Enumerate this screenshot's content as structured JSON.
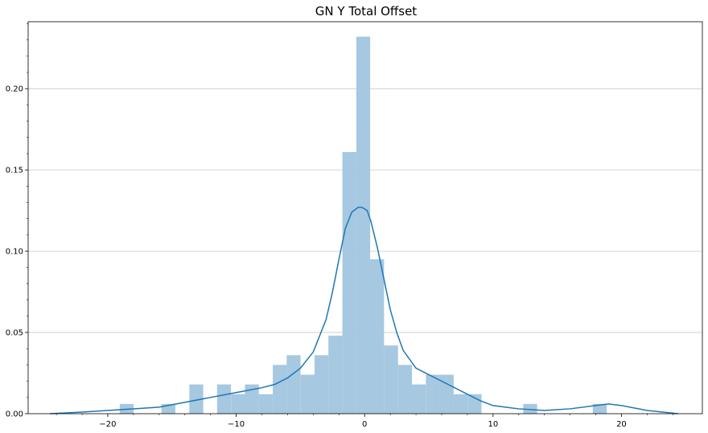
{
  "chart_data": {
    "type": "bar",
    "title": "GN Y Total Offset",
    "xlabel": "",
    "ylabel": "",
    "xlim": [
      -26.2,
      26.3
    ],
    "ylim": [
      0,
      0.2412
    ],
    "grid": "horizontal",
    "xticks": [
      {
        "value": -20,
        "label": "−20"
      },
      {
        "value": -10,
        "label": "−10"
      },
      {
        "value": 0,
        "label": "0"
      },
      {
        "value": 10,
        "label": "10"
      },
      {
        "value": 20,
        "label": "20"
      }
    ],
    "yticks": [
      {
        "value": 0.0,
        "label": "0.00"
      },
      {
        "value": 0.05,
        "label": "0.05"
      },
      {
        "value": 0.1,
        "label": "0.10"
      },
      {
        "value": 0.15,
        "label": "0.15"
      },
      {
        "value": 0.2,
        "label": "0.20"
      }
    ],
    "histogram": {
      "bin_width": 1.083,
      "bins": [
        {
          "start": -19.07,
          "value": 0.006
        },
        {
          "start": -15.82,
          "value": 0.006
        },
        {
          "start": -13.65,
          "value": 0.018
        },
        {
          "start": -11.49,
          "value": 0.018
        },
        {
          "start": -10.4,
          "value": 0.012
        },
        {
          "start": -9.32,
          "value": 0.018
        },
        {
          "start": -8.24,
          "value": 0.012
        },
        {
          "start": -7.15,
          "value": 0.03
        },
        {
          "start": -6.07,
          "value": 0.036
        },
        {
          "start": -4.98,
          "value": 0.024
        },
        {
          "start": -3.9,
          "value": 0.036
        },
        {
          "start": -2.82,
          "value": 0.048
        },
        {
          "start": -1.73,
          "value": 0.161
        },
        {
          "start": -0.65,
          "value": 0.232
        },
        {
          "start": 0.43,
          "value": 0.095
        },
        {
          "start": 1.52,
          "value": 0.042
        },
        {
          "start": 2.6,
          "value": 0.03
        },
        {
          "start": 3.68,
          "value": 0.018
        },
        {
          "start": 4.77,
          "value": 0.024
        },
        {
          "start": 5.85,
          "value": 0.024
        },
        {
          "start": 6.93,
          "value": 0.012
        },
        {
          "start": 8.02,
          "value": 0.012
        },
        {
          "start": 12.35,
          "value": 0.006
        },
        {
          "start": 17.77,
          "value": 0.006
        }
      ]
    },
    "kde": {
      "x": [
        -24.5,
        -22,
        -20,
        -18,
        -16,
        -14,
        -12,
        -10,
        -8,
        -7,
        -6,
        -5,
        -4,
        -3,
        -2.5,
        -2,
        -1.5,
        -1,
        -0.5,
        -0.2,
        0.2,
        0.5,
        1,
        1.5,
        2,
        2.5,
        3,
        4,
        5,
        6,
        7,
        8,
        9,
        10,
        12,
        14,
        16,
        18,
        19,
        20,
        22,
        24.4
      ],
      "y": [
        0.0,
        0.001,
        0.002,
        0.003,
        0.004,
        0.007,
        0.01,
        0.013,
        0.016,
        0.018,
        0.022,
        0.028,
        0.038,
        0.058,
        0.075,
        0.095,
        0.114,
        0.124,
        0.127,
        0.127,
        0.125,
        0.118,
        0.102,
        0.083,
        0.064,
        0.05,
        0.039,
        0.028,
        0.024,
        0.02,
        0.016,
        0.012,
        0.008,
        0.005,
        0.003,
        0.002,
        0.003,
        0.005,
        0.006,
        0.005,
        0.002,
        0.0
      ]
    },
    "colors": {
      "bar": "#a6c8e0",
      "line": "#1f77b4",
      "grid": "#c8c8c8",
      "axis": "#000000"
    }
  }
}
